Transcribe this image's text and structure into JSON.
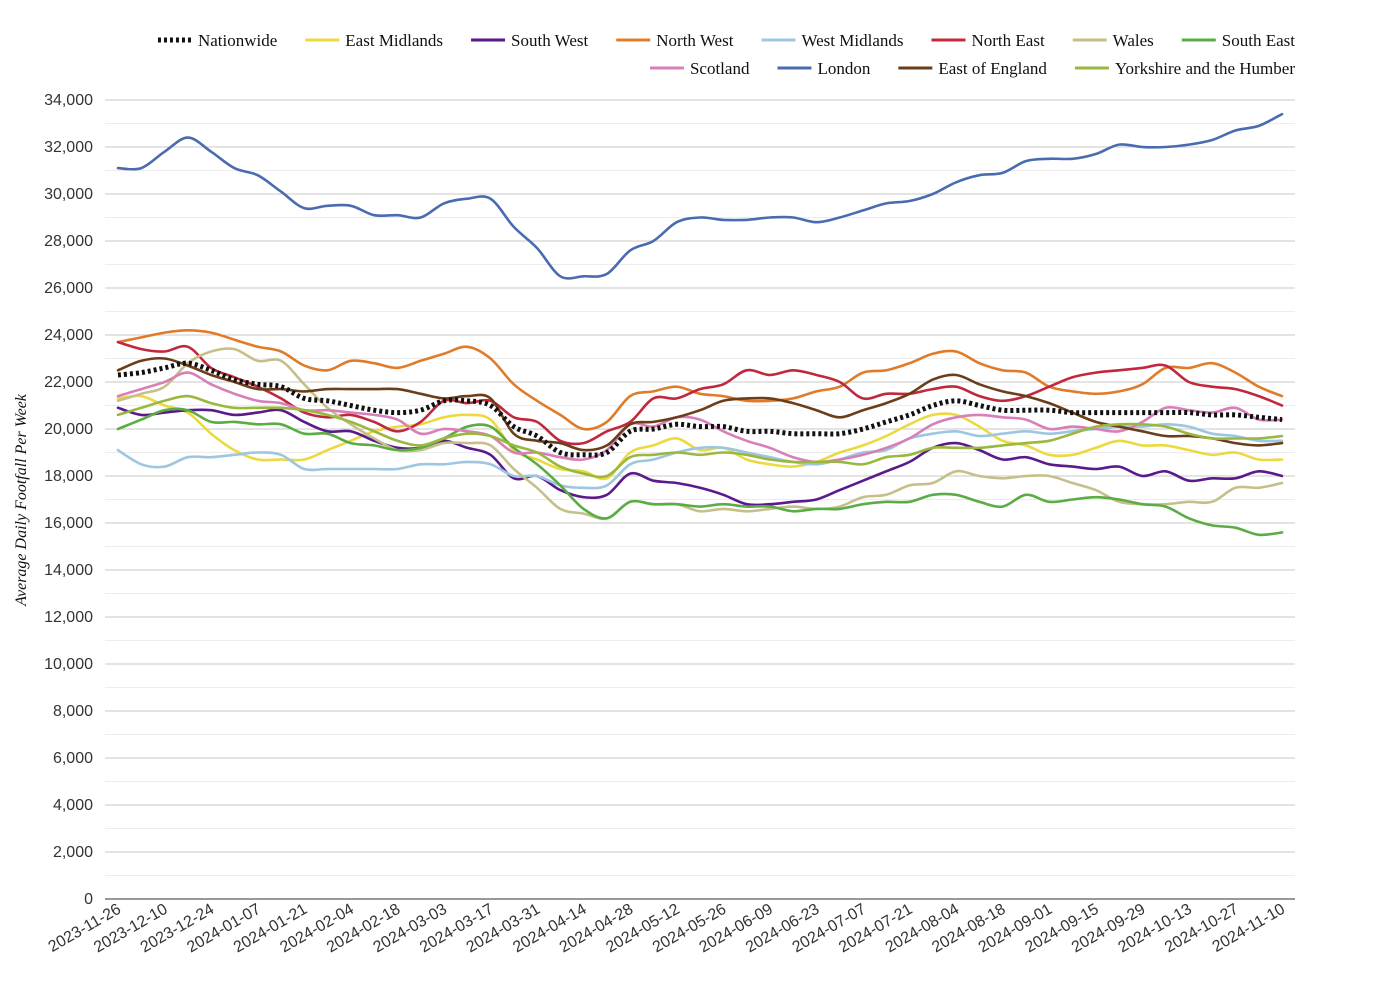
{
  "chart_data": {
    "type": "line",
    "title": "",
    "xlabel": "",
    "ylabel": "Average Daily Footfall Per Week",
    "ylim": [
      0,
      34000
    ],
    "y_ticks": [
      "0",
      "2,000",
      "4,000",
      "6,000",
      "8,000",
      "10,000",
      "12,000",
      "14,000",
      "16,000",
      "18,000",
      "20,000",
      "22,000",
      "24,000",
      "26,000",
      "28,000",
      "30,000",
      "32,000",
      "34,000"
    ],
    "grid": true,
    "legend_position": "top",
    "x": [
      "2023-11-26",
      "2023-12-03",
      "2023-12-10",
      "2023-12-17",
      "2023-12-24",
      "2023-12-31",
      "2024-01-07",
      "2024-01-14",
      "2024-01-21",
      "2024-01-28",
      "2024-02-04",
      "2024-02-11",
      "2024-02-18",
      "2024-02-25",
      "2024-03-03",
      "2024-03-10",
      "2024-03-17",
      "2024-03-24",
      "2024-03-31",
      "2024-04-07",
      "2024-04-14",
      "2024-04-21",
      "2024-04-28",
      "2024-05-05",
      "2024-05-12",
      "2024-05-19",
      "2024-05-26",
      "2024-06-02",
      "2024-06-09",
      "2024-06-16",
      "2024-06-23",
      "2024-06-30",
      "2024-07-07",
      "2024-07-14",
      "2024-07-21",
      "2024-07-28",
      "2024-08-04",
      "2024-08-11",
      "2024-08-18",
      "2024-08-25",
      "2024-09-01",
      "2024-09-08",
      "2024-09-15",
      "2024-09-22",
      "2024-09-29",
      "2024-10-06",
      "2024-10-13",
      "2024-10-20",
      "2024-10-27",
      "2024-11-03",
      "2024-11-10"
    ],
    "x_tick_labels": [
      "2023-11-26",
      "2023-12-10",
      "2023-12-24",
      "2024-01-07",
      "2024-01-21",
      "2024-02-04",
      "2024-02-18",
      "2024-03-03",
      "2024-03-17",
      "2024-03-31",
      "2024-04-14",
      "2024-04-28",
      "2024-05-12",
      "2024-05-26",
      "2024-06-09",
      "2024-06-23",
      "2024-07-07",
      "2024-07-21",
      "2024-08-04",
      "2024-08-18",
      "2024-09-01",
      "2024-09-15",
      "2024-09-29",
      "2024-10-13",
      "2024-10-27",
      "2024-11-10"
    ],
    "series": [
      {
        "name": "Nationwide",
        "color": "#111111",
        "dashed": true,
        "values": [
          22300,
          22400,
          22600,
          22800,
          22500,
          22100,
          21900,
          21800,
          21300,
          21200,
          21000,
          20800,
          20700,
          20800,
          21200,
          21200,
          21000,
          20100,
          19700,
          19000,
          18900,
          19000,
          19900,
          20000,
          20200,
          20100,
          20100,
          19900,
          19900,
          19800,
          19800,
          19800,
          20000,
          20300,
          20600,
          21000,
          21200,
          21000,
          20800,
          20800,
          20800,
          20700,
          20700,
          20700,
          20700,
          20700,
          20700,
          20600,
          20600,
          20500,
          20400
        ]
      },
      {
        "name": "East Midlands",
        "color": "#ecd940",
        "dashed": false,
        "values": [
          21300,
          21400,
          21000,
          20700,
          19800,
          19100,
          18700,
          18700,
          18700,
          19100,
          19500,
          19900,
          20100,
          20200,
          20500,
          20600,
          20400,
          19100,
          18700,
          18300,
          18200,
          17900,
          19000,
          19300,
          19600,
          19100,
          19200,
          18700,
          18500,
          18400,
          18600,
          19000,
          19300,
          19700,
          20200,
          20600,
          20600,
          20100,
          19500,
          19300,
          18900,
          18900,
          19200,
          19500,
          19300,
          19300,
          19100,
          18900,
          19000,
          18700,
          18700
        ]
      },
      {
        "name": "South West",
        "color": "#5b1a8b",
        "dashed": false,
        "values": [
          20900,
          20600,
          20700,
          20800,
          20800,
          20600,
          20700,
          20800,
          20300,
          19900,
          19900,
          19500,
          19200,
          19200,
          19500,
          19200,
          18900,
          17900,
          18000,
          17400,
          17100,
          17200,
          18100,
          17800,
          17700,
          17500,
          17200,
          16800,
          16800,
          16900,
          17000,
          17400,
          17800,
          18200,
          18600,
          19200,
          19400,
          19100,
          18700,
          18800,
          18500,
          18400,
          18300,
          18400,
          18000,
          18200,
          17800,
          17900,
          17900,
          18200,
          18000
        ]
      },
      {
        "name": "North West",
        "color": "#e07b2a",
        "dashed": false,
        "values": [
          23700,
          23900,
          24100,
          24200,
          24100,
          23800,
          23500,
          23300,
          22700,
          22500,
          22900,
          22800,
          22600,
          22900,
          23200,
          23500,
          23000,
          21900,
          21200,
          20600,
          20000,
          20300,
          21400,
          21600,
          21800,
          21500,
          21400,
          21200,
          21200,
          21300,
          21600,
          21800,
          22400,
          22500,
          22800,
          23200,
          23300,
          22800,
          22500,
          22400,
          21800,
          21600,
          21500,
          21600,
          21900,
          22600,
          22600,
          22800,
          22400,
          21800,
          21400
        ]
      },
      {
        "name": "West Midlands",
        "color": "#9dc6e0",
        "dashed": false,
        "values": [
          19100,
          18500,
          18400,
          18800,
          18800,
          18900,
          19000,
          18900,
          18300,
          18300,
          18300,
          18300,
          18300,
          18500,
          18500,
          18600,
          18500,
          18000,
          18000,
          17600,
          17500,
          17600,
          18500,
          18700,
          19000,
          19200,
          19200,
          19000,
          18800,
          18600,
          18500,
          18700,
          19000,
          19100,
          19600,
          19800,
          19900,
          19700,
          19800,
          19900,
          19800,
          19900,
          20000,
          20100,
          20100,
          20200,
          20100,
          19800,
          19700,
          19500,
          19500
        ]
      },
      {
        "name": "North East",
        "color": "#c0283e",
        "dashed": false,
        "values": [
          23700,
          23400,
          23300,
          23500,
          22600,
          22200,
          21800,
          21300,
          20700,
          20500,
          20600,
          20300,
          19900,
          20300,
          21200,
          21100,
          21200,
          20500,
          20300,
          19500,
          19400,
          19900,
          20300,
          21300,
          21300,
          21700,
          21900,
          22500,
          22300,
          22500,
          22300,
          22000,
          21300,
          21500,
          21500,
          21700,
          21800,
          21400,
          21200,
          21400,
          21800,
          22200,
          22400,
          22500,
          22600,
          22700,
          22000,
          21800,
          21700,
          21400,
          21000
        ]
      },
      {
        "name": "Wales",
        "color": "#c5c08a",
        "dashed": false,
        "values": [
          21200,
          21500,
          21800,
          22800,
          23300,
          23400,
          22900,
          22900,
          21900,
          20900,
          20200,
          19600,
          19100,
          19100,
          19400,
          19400,
          19300,
          18300,
          17500,
          16600,
          16400,
          16200,
          16900,
          16800,
          16800,
          16500,
          16600,
          16500,
          16600,
          16700,
          16600,
          16700,
          17100,
          17200,
          17600,
          17700,
          18200,
          18000,
          17900,
          18000,
          18000,
          17700,
          17400,
          16900,
          16800,
          16800,
          16900,
          16900,
          17500,
          17500,
          17700
        ]
      },
      {
        "name": "South East",
        "color": "#5aac44",
        "dashed": false,
        "values": [
          20000,
          20400,
          20800,
          20800,
          20300,
          20300,
          20200,
          20200,
          19800,
          19800,
          19400,
          19300,
          19100,
          19200,
          19600,
          20100,
          20100,
          19200,
          18500,
          17600,
          16600,
          16200,
          16900,
          16800,
          16800,
          16700,
          16800,
          16700,
          16700,
          16500,
          16600,
          16600,
          16800,
          16900,
          16900,
          17200,
          17200,
          16900,
          16700,
          17200,
          16900,
          17000,
          17100,
          17000,
          16800,
          16700,
          16200,
          15900,
          15800,
          15500,
          15600
        ]
      },
      {
        "name": "Scotland",
        "color": "#d87fb8",
        "dashed": false,
        "values": [
          21400,
          21700,
          22000,
          22400,
          21900,
          21500,
          21200,
          21100,
          20800,
          20800,
          20700,
          20600,
          20400,
          19800,
          20000,
          19900,
          19700,
          19000,
          19000,
          18800,
          18700,
          19100,
          20200,
          20100,
          20500,
          20400,
          19900,
          19500,
          19200,
          18800,
          18600,
          18700,
          18900,
          19200,
          19600,
          20200,
          20500,
          20600,
          20500,
          20400,
          20000,
          20100,
          20000,
          19900,
          20300,
          20900,
          20800,
          20700,
          20900,
          20400,
          20400
        ]
      },
      {
        "name": "London",
        "color": "#4a6baf",
        "dashed": false,
        "values": [
          31100,
          31100,
          31800,
          32400,
          31800,
          31100,
          30800,
          30100,
          29400,
          29500,
          29500,
          29100,
          29100,
          29000,
          29600,
          29800,
          29800,
          28600,
          27700,
          26500,
          26500,
          26600,
          27600,
          28000,
          28800,
          29000,
          28900,
          28900,
          29000,
          29000,
          28800,
          29000,
          29300,
          29600,
          29700,
          30000,
          30500,
          30800,
          30900,
          31400,
          31500,
          31500,
          31700,
          32100,
          32000,
          32000,
          32100,
          32300,
          32700,
          32900,
          33400
        ]
      },
      {
        "name": "East of England",
        "color": "#6b3e1a",
        "dashed": false,
        "values": [
          22500,
          22900,
          23000,
          22700,
          22300,
          22000,
          21700,
          21700,
          21600,
          21700,
          21700,
          21700,
          21700,
          21500,
          21300,
          21400,
          21300,
          19800,
          19500,
          19400,
          19100,
          19300,
          20200,
          20300,
          20500,
          20800,
          21200,
          21300,
          21300,
          21100,
          20800,
          20500,
          20800,
          21100,
          21500,
          22100,
          22300,
          21900,
          21600,
          21400,
          21100,
          20700,
          20300,
          20100,
          19900,
          19700,
          19700,
          19600,
          19400,
          19300,
          19400
        ]
      },
      {
        "name": "Yorkshire and the Humber",
        "color": "#9ab840",
        "dashed": false,
        "values": [
          20600,
          20900,
          21200,
          21400,
          21100,
          20900,
          20900,
          20900,
          20800,
          20600,
          20300,
          19900,
          19500,
          19300,
          19600,
          19800,
          19700,
          19300,
          19000,
          18400,
          18100,
          18000,
          18800,
          18900,
          19000,
          18900,
          19000,
          18900,
          18700,
          18600,
          18600,
          18600,
          18500,
          18800,
          18900,
          19200,
          19200,
          19200,
          19300,
          19400,
          19500,
          19800,
          20100,
          20200,
          20200,
          20100,
          19800,
          19600,
          19600,
          19600,
          19700
        ]
      }
    ]
  }
}
